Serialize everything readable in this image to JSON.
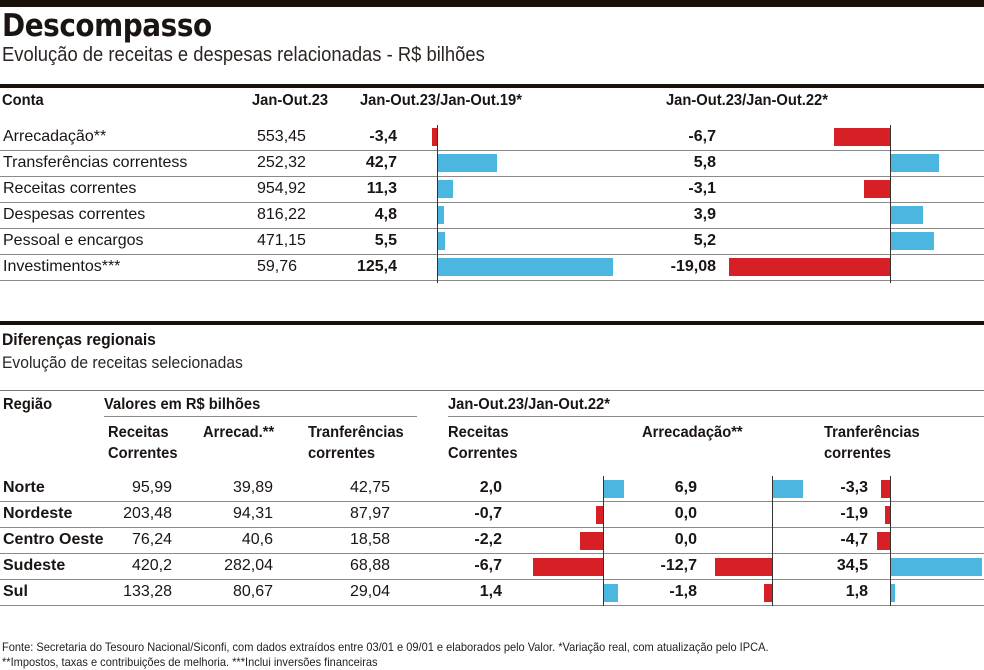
{
  "title": "Descompasso",
  "subtitle": "Evolução de receitas e despesas relacionadas - R$ bilhões",
  "colors": {
    "positive": "#4bb6e0",
    "negative": "#d71f26"
  },
  "table1": {
    "headers": {
      "conta": "Conta",
      "value": "Jan-Out.23",
      "var19": "Jan-Out.23/Jan-Out.19*",
      "var22": "Jan-Out.23/Jan-Out.22*"
    },
    "rows": [
      {
        "conta": "Arrecadação**",
        "value": "553,45",
        "var19": "-3,4",
        "var22": "-6,7"
      },
      {
        "conta": "Transferências correntess",
        "value": "252,32",
        "var19": "42,7",
        "var22": "5,8"
      },
      {
        "conta": "Receitas correntes",
        "value": "954,92",
        "var19": "11,3",
        "var22": "-3,1"
      },
      {
        "conta": "Despesas correntes",
        "value": "816,22",
        "var19": "4,8",
        "var22": "3,9"
      },
      {
        "conta": "Pessoal e encargos",
        "value": "471,15",
        "var19": "5,5",
        "var22": "5,2"
      },
      {
        "conta": "Investimentos***",
        "value": "59,76",
        "var19": "125,4",
        "var22": "-19,08"
      }
    ]
  },
  "section2": {
    "title": "Diferenças regionais",
    "subtitle": "Evolução de receitas selecionadas",
    "headers": {
      "regiao": "Região",
      "valores": "Valores em R$ bilhões",
      "variacao": "Jan-Out.23/Jan-Out.22*",
      "receitas_l1": "Receitas",
      "receitas_l2": "Correntes",
      "arrecad": "Arrecad.**",
      "arrecadacao": "Arrecadação**",
      "transf_l1": "Tranferências",
      "transf_l2": "correntes"
    },
    "rows": [
      {
        "regiao": "Norte",
        "receitas": "95,99",
        "arrecad": "39,89",
        "transf": "42,75",
        "var_receitas": "2,0",
        "var_arrecad": "6,9",
        "var_transf": "-3,3"
      },
      {
        "regiao": "Nordeste",
        "receitas": "203,48",
        "arrecad": "94,31",
        "transf": "87,97",
        "var_receitas": "-0,7",
        "var_arrecad": "0,0",
        "var_transf": "-1,9"
      },
      {
        "regiao": "Centro Oeste",
        "receitas": "76,24",
        "arrecad": "40,6",
        "transf": "18,58",
        "var_receitas": "-2,2",
        "var_arrecad": "0,0",
        "var_transf": "-4,7"
      },
      {
        "regiao": "Sudeste",
        "receitas": "420,2",
        "arrecad": "282,04",
        "transf": "68,88",
        "var_receitas": "-6,7",
        "var_arrecad": "-12,7",
        "var_transf": "34,5"
      },
      {
        "regiao": "Sul",
        "receitas": "133,28",
        "arrecad": "80,67",
        "transf": "29,04",
        "var_receitas": "1,4",
        "var_arrecad": "-1,8",
        "var_transf": "1,8"
      }
    ]
  },
  "footnotes": {
    "line1": "Fonte: Secretaria do Tesouro Nacional/Siconfi, com dados extraídos entre 03/01 e 09/01 e elaborados pelo Valor. *Variação real, com atualização pelo IPCA.",
    "line2": "**Impostos, taxas e contribuições de melhoria. ***Inclui inversões financeiras"
  },
  "chart_data": [
    {
      "type": "bar",
      "title": "Jan-Out.23/Jan-Out.19*",
      "categories": [
        "Arrecadação**",
        "Transferências correntess",
        "Receitas correntes",
        "Despesas correntes",
        "Pessoal e encargos",
        "Investimentos***"
      ],
      "values": [
        -3.4,
        42.7,
        11.3,
        4.8,
        5.5,
        125.4
      ],
      "orientation": "horizontal"
    },
    {
      "type": "bar",
      "title": "Jan-Out.23/Jan-Out.22*",
      "categories": [
        "Arrecadação**",
        "Transferências correntess",
        "Receitas correntes",
        "Despesas correntes",
        "Pessoal e encargos",
        "Investimentos***"
      ],
      "values": [
        -6.7,
        5.8,
        -3.1,
        3.9,
        5.2,
        -19.08
      ],
      "orientation": "horizontal"
    },
    {
      "type": "bar",
      "title": "Receitas Correntes (Jan-Out.23/Jan-Out.22*)",
      "categories": [
        "Norte",
        "Nordeste",
        "Centro Oeste",
        "Sudeste",
        "Sul"
      ],
      "values": [
        2.0,
        -0.7,
        -2.2,
        -6.7,
        1.4
      ],
      "orientation": "horizontal"
    },
    {
      "type": "bar",
      "title": "Arrecadação** (Jan-Out.23/Jan-Out.22*)",
      "categories": [
        "Norte",
        "Nordeste",
        "Centro Oeste",
        "Sudeste",
        "Sul"
      ],
      "values": [
        6.9,
        0.0,
        0.0,
        -12.7,
        -1.8
      ],
      "orientation": "horizontal"
    },
    {
      "type": "bar",
      "title": "Tranferências correntes (Jan-Out.23/Jan-Out.22*)",
      "categories": [
        "Norte",
        "Nordeste",
        "Centro Oeste",
        "Sudeste",
        "Sul"
      ],
      "values": [
        -3.3,
        -1.9,
        -4.7,
        34.5,
        1.8
      ],
      "orientation": "horizontal"
    }
  ]
}
